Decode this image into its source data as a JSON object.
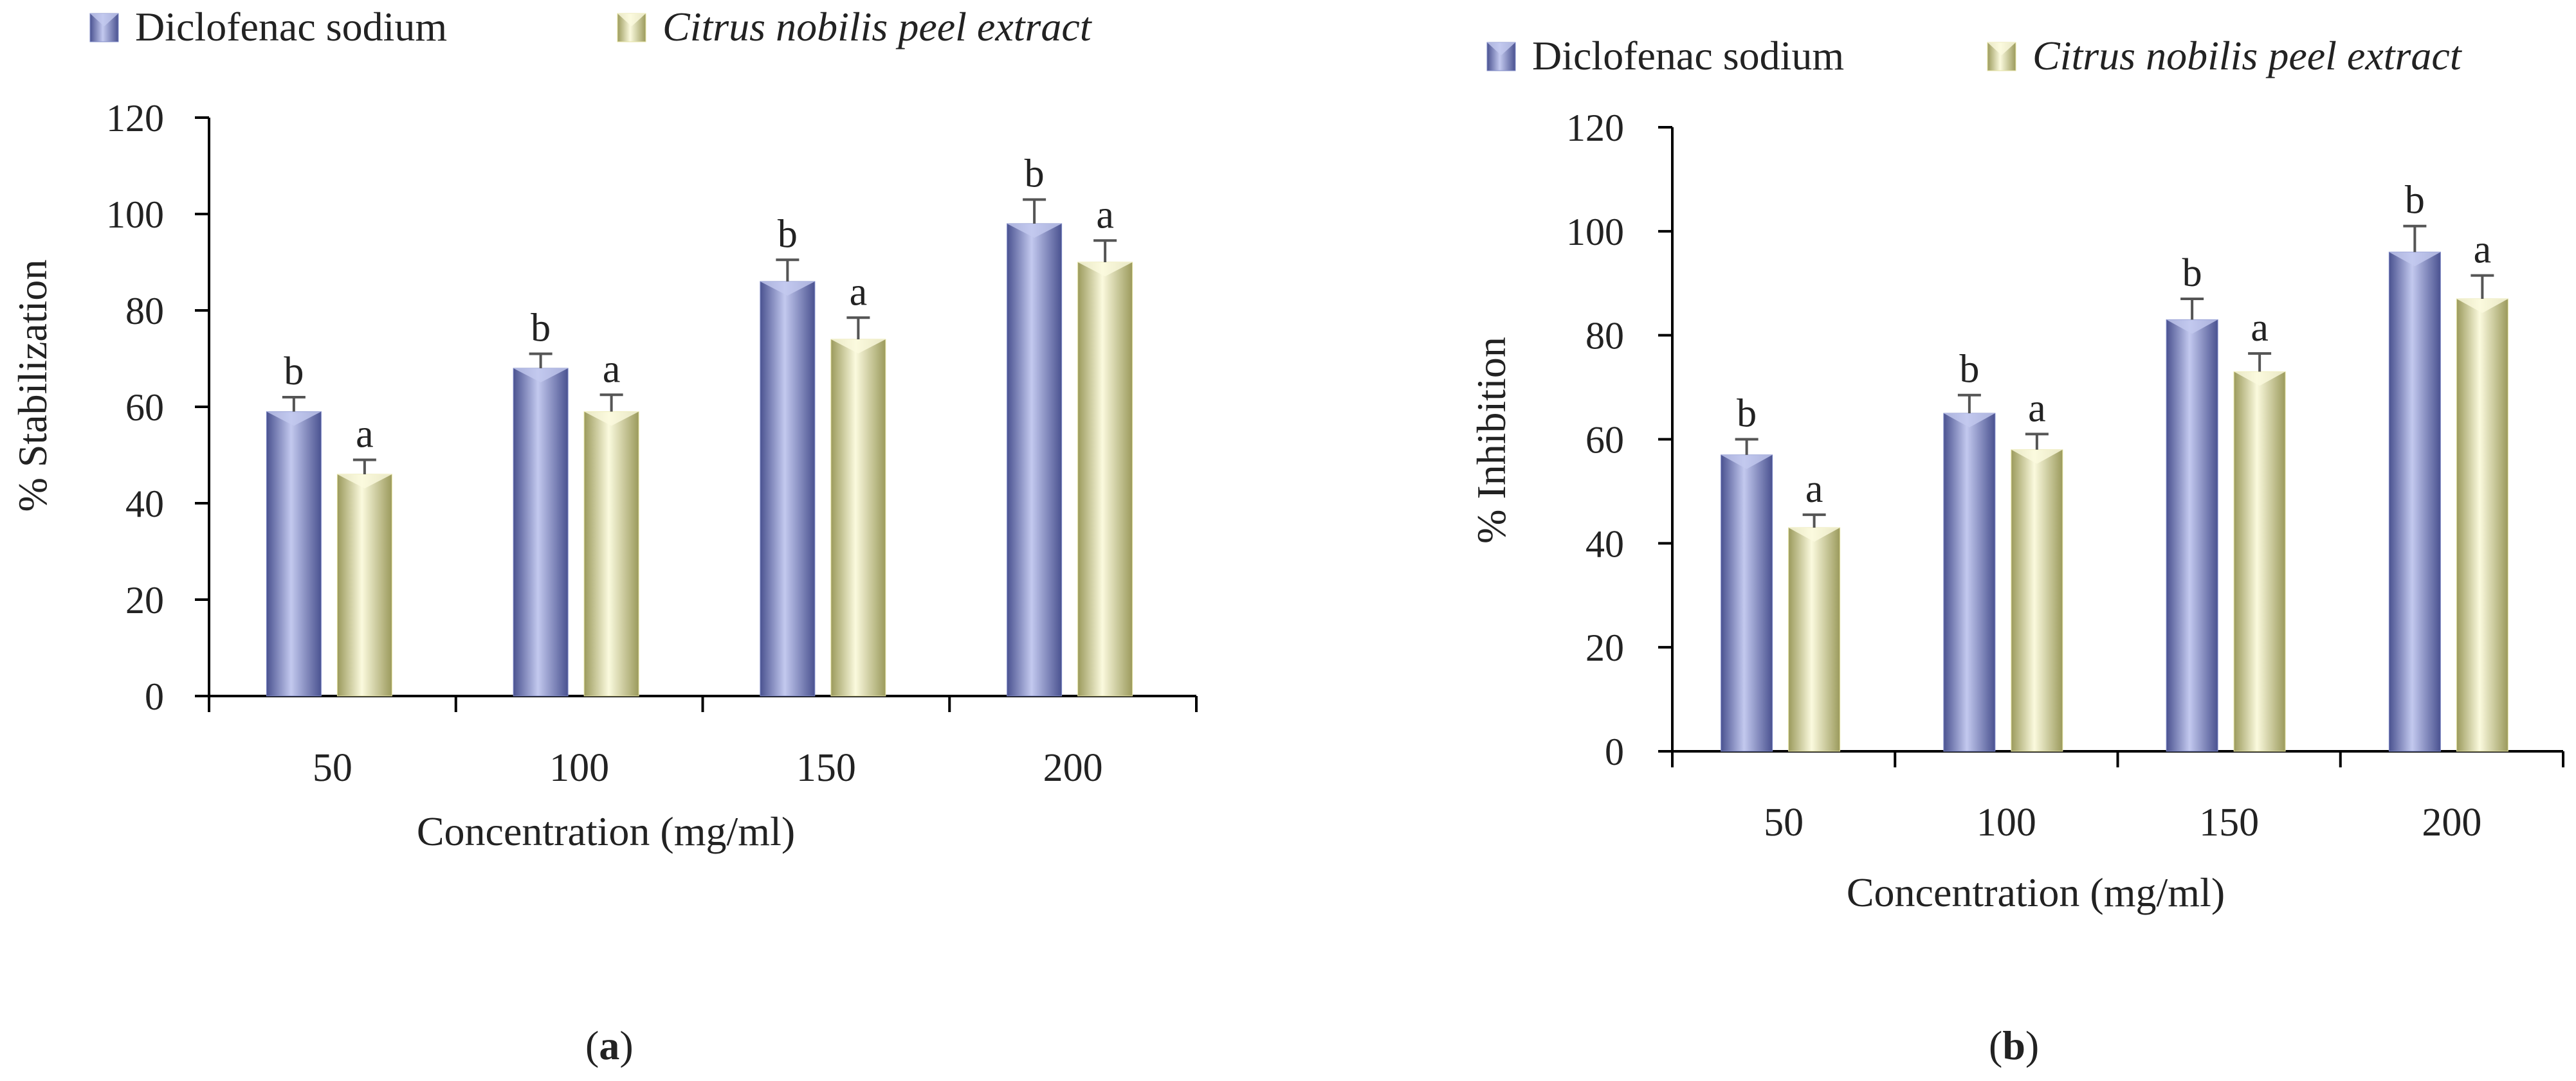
{
  "colors": {
    "diclofenac": "#7d88c6",
    "diclofenac_dark": "#4a5290",
    "diclofenac_light": "#c3c9ef",
    "citrus": "#e4e2a2",
    "citrus_dark": "#9b9a5c",
    "citrus_light": "#fbfade",
    "axis": "#000000",
    "errorbar": "#555555",
    "text": "#222222"
  },
  "chart_data": [
    {
      "type": "bar",
      "panel": "a",
      "categories": [
        "50",
        "100",
        "150",
        "200"
      ],
      "series": [
        {
          "name": "Diclofenac sodium",
          "style": "normal",
          "values": [
            59,
            68,
            86,
            98
          ],
          "errors": [
            3,
            3,
            4.5,
            5
          ],
          "letters": [
            "b",
            "b",
            "b",
            "b"
          ]
        },
        {
          "name": "Citrus nobilis peel extract",
          "style": "italic",
          "values": [
            46,
            59,
            74,
            90
          ],
          "errors": [
            3,
            3.5,
            4.5,
            4.5
          ],
          "letters": [
            "a",
            "a",
            "a",
            "a"
          ]
        }
      ],
      "yticks": [
        0,
        20,
        40,
        60,
        80,
        100,
        120
      ],
      "ylim": [
        0,
        120
      ],
      "xlabel": "Concentration (mg/ml)",
      "ylabel": "% Stabilization",
      "legend": "top",
      "panel_label": "a"
    },
    {
      "type": "bar",
      "panel": "b",
      "categories": [
        "50",
        "100",
        "150",
        "200"
      ],
      "series": [
        {
          "name": "Diclofenac sodium",
          "style": "normal",
          "values": [
            57,
            65,
            83,
            96
          ],
          "errors": [
            3,
            3.5,
            4,
            5
          ],
          "letters": [
            "b",
            "b",
            "b",
            "b"
          ]
        },
        {
          "name": "Citrus nobilis peel extract",
          "style": "italic",
          "values": [
            43,
            58,
            73,
            87
          ],
          "errors": [
            2.5,
            3,
            3.5,
            4.5
          ],
          "letters": [
            "a",
            "a",
            "a",
            "a"
          ]
        }
      ],
      "yticks": [
        0,
        20,
        40,
        60,
        80,
        100,
        120
      ],
      "ylim": [
        0,
        120
      ],
      "xlabel": "Concentration (mg/ml)",
      "ylabel": "% Inhibition",
      "legend": "top-right",
      "panel_label": "b"
    }
  ]
}
